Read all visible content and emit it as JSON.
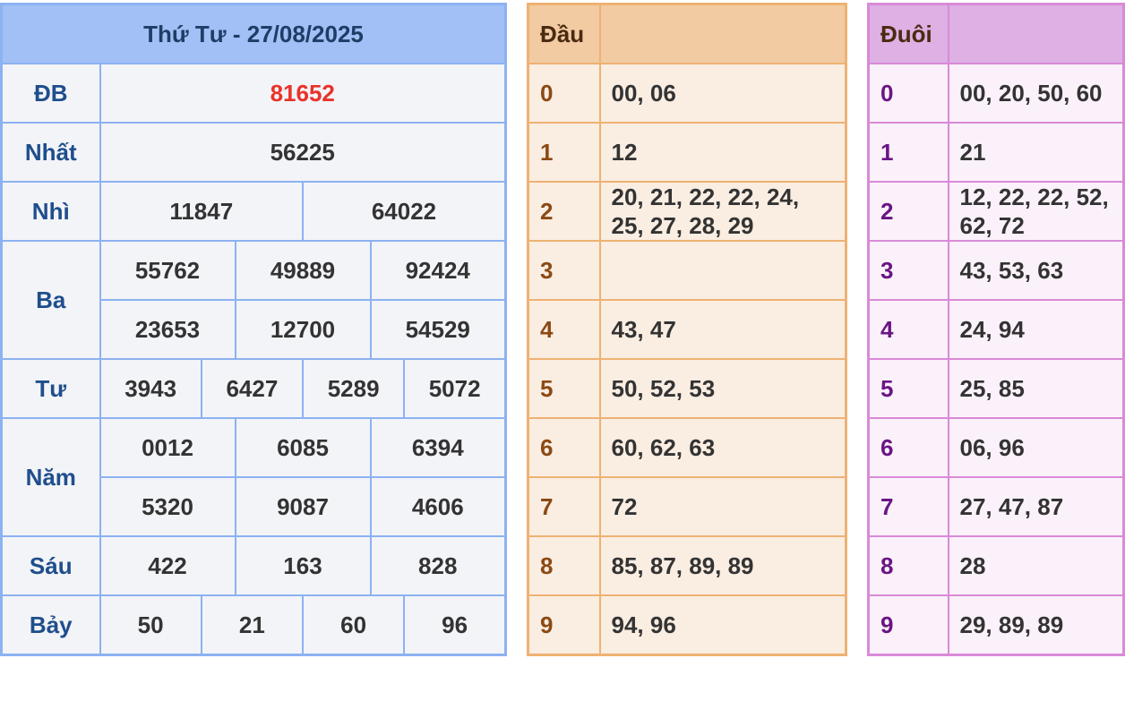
{
  "results": {
    "title": "Thứ Tư - 27/08/2025",
    "rows": [
      {
        "label": "ĐB",
        "values": [
          "81652"
        ]
      },
      {
        "label": "Nhất",
        "values": [
          "56225"
        ]
      },
      {
        "label": "Nhì",
        "values": [
          "11847",
          "64022"
        ]
      },
      {
        "label": "Ba",
        "values": [
          "55762",
          "49889",
          "92424",
          "23653",
          "12700",
          "54529"
        ]
      },
      {
        "label": "Tư",
        "values": [
          "3943",
          "6427",
          "5289",
          "5072"
        ]
      },
      {
        "label": "Năm",
        "values": [
          "0012",
          "6085",
          "6394",
          "5320",
          "9087",
          "4606"
        ]
      },
      {
        "label": "Sáu",
        "values": [
          "422",
          "163",
          "828"
        ]
      },
      {
        "label": "Bảy",
        "values": [
          "50",
          "21",
          "60",
          "96"
        ]
      }
    ]
  },
  "dau": {
    "header": "Đầu",
    "rows": [
      {
        "k": "0",
        "v": "00, 06"
      },
      {
        "k": "1",
        "v": "12"
      },
      {
        "k": "2",
        "v": "20, 21, 22, 22, 24, 25, 27, 28, 29"
      },
      {
        "k": "3",
        "v": ""
      },
      {
        "k": "4",
        "v": "43, 47"
      },
      {
        "k": "5",
        "v": "50, 52, 53"
      },
      {
        "k": "6",
        "v": "60, 62, 63"
      },
      {
        "k": "7",
        "v": "72"
      },
      {
        "k": "8",
        "v": "85, 87, 89, 89"
      },
      {
        "k": "9",
        "v": "94, 96"
      }
    ]
  },
  "duoi": {
    "header": "Đuôi",
    "rows": [
      {
        "k": "0",
        "v": "00, 20, 50, 60"
      },
      {
        "k": "1",
        "v": "21"
      },
      {
        "k": "2",
        "v": "12, 22, 22, 52, 62, 72"
      },
      {
        "k": "3",
        "v": "43, 53, 63"
      },
      {
        "k": "4",
        "v": "24, 94"
      },
      {
        "k": "5",
        "v": "25, 85"
      },
      {
        "k": "6",
        "v": "06, 96"
      },
      {
        "k": "7",
        "v": "27, 47, 87"
      },
      {
        "k": "8",
        "v": "28"
      },
      {
        "k": "9",
        "v": "29, 89, 89"
      }
    ]
  },
  "colors": {
    "special": "#e8332a",
    "results_header": "#a2bff6",
    "dau_header": "#f2cba3",
    "duoi_header": "#deb0e4"
  }
}
